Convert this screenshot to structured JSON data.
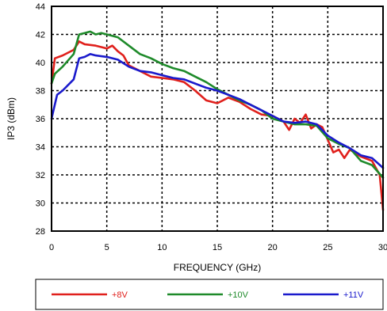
{
  "chart_data": {
    "type": "line",
    "xlabel": "FREQUENCY (GHz)",
    "ylabel": "IP3 (dBm)",
    "xlim": [
      0,
      30
    ],
    "ylim": [
      28,
      44
    ],
    "x_ticks": [
      "0",
      "5",
      "10",
      "15",
      "20",
      "25",
      "30"
    ],
    "y_ticks": [
      "28",
      "30",
      "32",
      "34",
      "36",
      "38",
      "40",
      "42",
      "44"
    ],
    "grid": "dashed",
    "legend_position": "bottom",
    "series": [
      {
        "name": "+8V",
        "color": "#e0201c",
        "points": [
          [
            0,
            38.5
          ],
          [
            0.3,
            40.3
          ],
          [
            1,
            40.5
          ],
          [
            2,
            40.9
          ],
          [
            2.5,
            41.5
          ],
          [
            3,
            41.3
          ],
          [
            4,
            41.2
          ],
          [
            5,
            41.0
          ],
          [
            5.5,
            41.2
          ],
          [
            6,
            40.8
          ],
          [
            6.5,
            40.5
          ],
          [
            7,
            39.8
          ],
          [
            8,
            39.4
          ],
          [
            9,
            39.0
          ],
          [
            10,
            38.9
          ],
          [
            11,
            38.8
          ],
          [
            12,
            38.6
          ],
          [
            13,
            38.0
          ],
          [
            14,
            37.3
          ],
          [
            15,
            37.1
          ],
          [
            16,
            37.5
          ],
          [
            17,
            37.2
          ],
          [
            18,
            36.7
          ],
          [
            19,
            36.3
          ],
          [
            20,
            36.2
          ],
          [
            21,
            35.8
          ],
          [
            21.5,
            35.2
          ],
          [
            22,
            36.0
          ],
          [
            22.5,
            35.7
          ],
          [
            23,
            36.3
          ],
          [
            23.5,
            35.3
          ],
          [
            24,
            35.6
          ],
          [
            24.5,
            35.4
          ],
          [
            25,
            34.5
          ],
          [
            25.5,
            33.6
          ],
          [
            26,
            33.8
          ],
          [
            26.5,
            33.2
          ],
          [
            27,
            33.8
          ],
          [
            28,
            33.3
          ],
          [
            29,
            33.0
          ],
          [
            29.7,
            32.0
          ],
          [
            30,
            29.5
          ]
        ]
      },
      {
        "name": "+10V",
        "color": "#1e8a2a",
        "points": [
          [
            0,
            38.5
          ],
          [
            0.3,
            39.2
          ],
          [
            1,
            39.7
          ],
          [
            2,
            40.6
          ],
          [
            2.5,
            42.0
          ],
          [
            3,
            42.1
          ],
          [
            3.5,
            42.2
          ],
          [
            4,
            42.0
          ],
          [
            4.5,
            42.1
          ],
          [
            5,
            42.0
          ],
          [
            6,
            41.8
          ],
          [
            7,
            41.2
          ],
          [
            8,
            40.6
          ],
          [
            9,
            40.3
          ],
          [
            10,
            39.9
          ],
          [
            11,
            39.6
          ],
          [
            12,
            39.4
          ],
          [
            13,
            39.0
          ],
          [
            14,
            38.6
          ],
          [
            15,
            38.1
          ],
          [
            16,
            37.7
          ],
          [
            17,
            37.3
          ],
          [
            18,
            37.0
          ],
          [
            19,
            36.6
          ],
          [
            20,
            36.0
          ],
          [
            21,
            35.8
          ],
          [
            22,
            35.6
          ],
          [
            23,
            35.6
          ],
          [
            24,
            35.5
          ],
          [
            25,
            34.6
          ],
          [
            26,
            34.2
          ],
          [
            27,
            33.9
          ],
          [
            28,
            33.0
          ],
          [
            29,
            32.7
          ],
          [
            30,
            31.8
          ]
        ]
      },
      {
        "name": "+11V",
        "color": "#1a1acc",
        "points": [
          [
            0,
            36.0
          ],
          [
            0.5,
            37.7
          ],
          [
            1,
            38.0
          ],
          [
            2,
            38.8
          ],
          [
            2.5,
            40.3
          ],
          [
            3,
            40.4
          ],
          [
            3.5,
            40.6
          ],
          [
            4,
            40.5
          ],
          [
            5,
            40.4
          ],
          [
            6,
            40.2
          ],
          [
            7,
            39.7
          ],
          [
            8,
            39.4
          ],
          [
            9,
            39.3
          ],
          [
            10,
            39.1
          ],
          [
            11,
            38.9
          ],
          [
            12,
            38.8
          ],
          [
            13,
            38.5
          ],
          [
            14,
            38.2
          ],
          [
            15,
            38.0
          ],
          [
            16,
            37.7
          ],
          [
            17,
            37.4
          ],
          [
            18,
            37.0
          ],
          [
            19,
            36.6
          ],
          [
            20,
            36.2
          ],
          [
            21,
            35.8
          ],
          [
            22,
            35.7
          ],
          [
            23,
            35.8
          ],
          [
            24,
            35.6
          ],
          [
            25,
            34.8
          ],
          [
            26,
            34.3
          ],
          [
            27,
            33.9
          ],
          [
            28,
            33.4
          ],
          [
            29,
            33.2
          ],
          [
            30,
            32.5
          ]
        ]
      }
    ]
  }
}
